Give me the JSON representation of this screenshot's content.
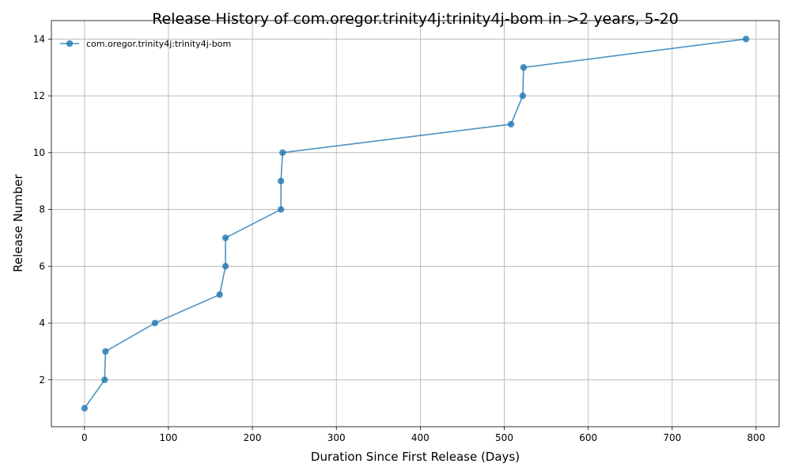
{
  "chart_data": {
    "type": "line",
    "title": "Release History of com.oregor.trinity4j:trinity4j-bom in >2 years, 5-20",
    "xlabel": "Duration Since First Release (Days)",
    "ylabel": "Release Number",
    "xlim": [
      -39.4,
      827.4
    ],
    "ylim": [
      0.35,
      14.65
    ],
    "xticks": [
      0,
      100,
      200,
      300,
      400,
      500,
      600,
      700,
      800
    ],
    "yticks": [
      2,
      4,
      6,
      8,
      10,
      12,
      14
    ],
    "grid": true,
    "legend_position": "top-left",
    "series": [
      {
        "name": "com.oregor.trinity4j:trinity4j-bom",
        "color": "#1f77b4",
        "marker": "circle",
        "x": [
          0,
          24,
          25,
          84,
          161,
          168,
          168,
          234,
          234,
          236,
          508,
          522,
          523,
          788
        ],
        "y": [
          1,
          2,
          3,
          4,
          5,
          6,
          7,
          8,
          9,
          10,
          11,
          12,
          13,
          14
        ]
      }
    ]
  }
}
